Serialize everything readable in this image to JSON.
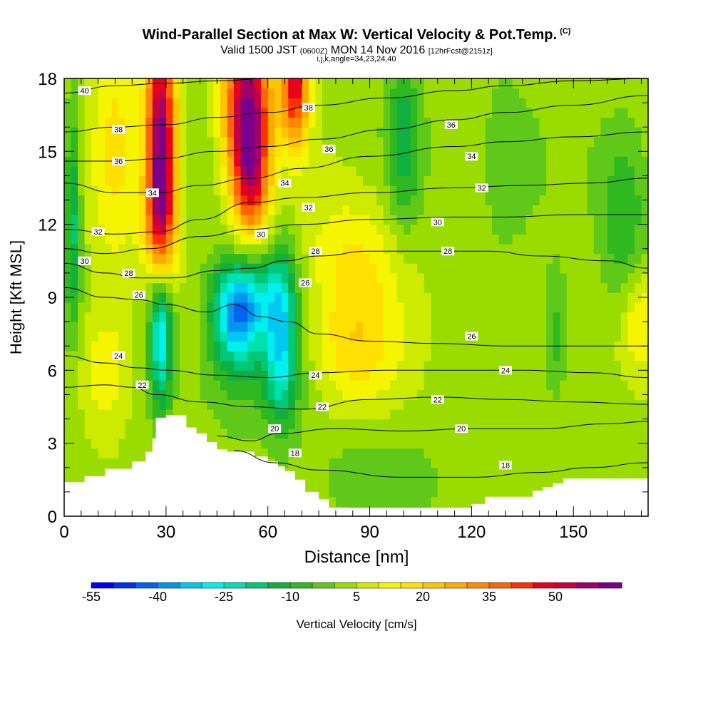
{
  "title": "Wind-Parallel Section at Max W: Vertical Velocity & Pot.Temp.",
  "title_mark": "(C)",
  "subtitle": {
    "valid": "Valid 1500 JST",
    "utc": "(0600Z)",
    "date": "MON 14 Nov 2016",
    "fcst": "[12hrFcst@2151z]"
  },
  "params": "i,j,k,angle=34,23,24,40",
  "chart_data": {
    "type": "heatmap",
    "title": "Wind-Parallel Section at Max W: Vertical Velocity & Pot.Temp.",
    "xlabel": "Distance [nm]",
    "ylabel": "Height [Kft MSL]",
    "xlim": [
      0,
      172
    ],
    "ylim": [
      0,
      18
    ],
    "xticks": [
      0,
      30,
      60,
      90,
      120,
      150
    ],
    "yticks": [
      0,
      3,
      6,
      9,
      12,
      15,
      18
    ],
    "colorbar": {
      "label": "Vertical Velocity [cm/s]",
      "tick_labels": [
        "-55",
        "-40",
        "-25",
        "-10",
        "5",
        "20",
        "35",
        "50"
      ],
      "levels": [
        -55,
        -50,
        -45,
        -40,
        -35,
        -30,
        -25,
        -20,
        -15,
        -10,
        -5,
        0,
        5,
        10,
        15,
        20,
        25,
        30,
        35,
        40,
        45,
        50,
        55,
        60
      ],
      "colors": [
        "#0000f0",
        "#0030f0",
        "#0064f0",
        "#0096f0",
        "#00c8f0",
        "#00f0f0",
        "#00e0b0",
        "#00c878",
        "#10b040",
        "#30b820",
        "#60c818",
        "#9adc00",
        "#cdeb00",
        "#f5f500",
        "#ffe000",
        "#ffc400",
        "#ffa800",
        "#ff8800",
        "#ff6400",
        "#ff3000",
        "#e8001c",
        "#c80040",
        "#a00068",
        "#78008c"
      ]
    },
    "terrain": [
      [
        0,
        1.4
      ],
      [
        6,
        1.4
      ],
      [
        6,
        1.65
      ],
      [
        12,
        1.65
      ],
      [
        12,
        1.95
      ],
      [
        20,
        1.95
      ],
      [
        20,
        2.25
      ],
      [
        24,
        2.25
      ],
      [
        24,
        2.65
      ],
      [
        26,
        2.65
      ],
      [
        26,
        3.2
      ],
      [
        27,
        3.2
      ],
      [
        27,
        4.05
      ],
      [
        30,
        4.05
      ],
      [
        30,
        4.15
      ],
      [
        36,
        4.15
      ],
      [
        36,
        3.65
      ],
      [
        39,
        3.65
      ],
      [
        39,
        3.4
      ],
      [
        42,
        3.4
      ],
      [
        42,
        3.05
      ],
      [
        45,
        3.05
      ],
      [
        45,
        2.75
      ],
      [
        48,
        2.75
      ],
      [
        48,
        2.65
      ],
      [
        56,
        2.65
      ],
      [
        56,
        2.45
      ],
      [
        60,
        2.45
      ],
      [
        60,
        2.25
      ],
      [
        63,
        2.25
      ],
      [
        63,
        2.05
      ],
      [
        65,
        2.05
      ],
      [
        65,
        1.85
      ],
      [
        68,
        1.85
      ],
      [
        68,
        1.5
      ],
      [
        71,
        1.5
      ],
      [
        71,
        1.0
      ],
      [
        75,
        1.0
      ],
      [
        75,
        0.7
      ],
      [
        78,
        0.7
      ],
      [
        78,
        0.35
      ],
      [
        120,
        0.35
      ],
      [
        120,
        0.5
      ],
      [
        124,
        0.5
      ],
      [
        124,
        0.8
      ],
      [
        138,
        0.8
      ],
      [
        138,
        1.05
      ],
      [
        141,
        1.05
      ],
      [
        141,
        1.2
      ],
      [
        144,
        1.2
      ],
      [
        144,
        1.35
      ],
      [
        147,
        1.35
      ],
      [
        147,
        1.55
      ],
      [
        172,
        1.55
      ]
    ],
    "w_features": [
      {
        "x": 28.5,
        "y": 15.5,
        "sx": 3.0,
        "sy": 3.3,
        "w": 60
      },
      {
        "x": 28.5,
        "y": 12.0,
        "sx": 3.4,
        "sy": 1.6,
        "w": 22
      },
      {
        "x": 54.0,
        "y": 16.8,
        "sx": 4.8,
        "sy": 2.3,
        "w": 58
      },
      {
        "x": 55.0,
        "y": 13.6,
        "sx": 3.6,
        "sy": 1.6,
        "w": 32
      },
      {
        "x": 68.0,
        "y": 17.6,
        "sx": 2.8,
        "sy": 1.6,
        "w": 45
      },
      {
        "x": 15.0,
        "y": 15.5,
        "sx": 5.0,
        "sy": 4.5,
        "w": 12
      },
      {
        "x": 12.0,
        "y": 6.0,
        "sx": 5.0,
        "sy": 1.6,
        "w": 12
      },
      {
        "x": 28.5,
        "y": 7.5,
        "sx": 2.4,
        "sy": 2.1,
        "w": -34
      },
      {
        "x": 51.0,
        "y": 8.2,
        "sx": 5.2,
        "sy": 1.4,
        "w": -36
      },
      {
        "x": 64.0,
        "y": 7.3,
        "sx": 3.2,
        "sy": 2.4,
        "w": -28
      },
      {
        "x": 57.0,
        "y": 9.2,
        "sx": 8.5,
        "sy": 1.3,
        "w": -14
      },
      {
        "x": 2.5,
        "y": 12.0,
        "sx": 1.6,
        "sy": 3.2,
        "w": -20
      },
      {
        "x": 100.0,
        "y": 15.5,
        "sx": 3.5,
        "sy": 2.6,
        "w": -15
      },
      {
        "x": 130.0,
        "y": 14.5,
        "sx": 10.0,
        "sy": 3.0,
        "w": -6
      },
      {
        "x": 165.0,
        "y": 12.0,
        "sx": 5.0,
        "sy": 2.6,
        "w": -12
      },
      {
        "x": 145.0,
        "y": 7.5,
        "sx": 2.4,
        "sy": 1.8,
        "w": -10
      },
      {
        "x": 85.0,
        "y": 10.0,
        "sx": 10.0,
        "sy": 2.2,
        "w": 14
      },
      {
        "x": 85.0,
        "y": 6.5,
        "sx": 9.0,
        "sy": 1.6,
        "w": 12
      },
      {
        "x": 170.0,
        "y": 8.0,
        "sx": 4.0,
        "sy": 1.6,
        "w": 14
      },
      {
        "x": 55.0,
        "y": 5.6,
        "sx": 12.0,
        "sy": 1.6,
        "w": -8
      },
      {
        "x": 90.0,
        "y": 1.5,
        "sx": 15.0,
        "sy": 1.3,
        "w": -6
      }
    ],
    "theta_contours": [
      {
        "level": 18,
        "pts": [
          [
            50,
            2.7
          ],
          [
            62,
            2.2
          ],
          [
            75,
            1.9
          ],
          [
            100,
            1.6
          ],
          [
            120,
            1.6
          ],
          [
            140,
            1.8
          ],
          [
            155,
            2.0
          ],
          [
            172,
            2.2
          ]
        ]
      },
      {
        "level": 20,
        "pts": [
          [
            45,
            3.3
          ],
          [
            55,
            3.1
          ],
          [
            63,
            3.4
          ],
          [
            80,
            3.6
          ],
          [
            100,
            3.5
          ],
          [
            120,
            3.6
          ],
          [
            140,
            3.6
          ],
          [
            160,
            3.8
          ],
          [
            172,
            3.9
          ]
        ]
      },
      {
        "level": 22,
        "pts": [
          [
            0,
            5.3
          ],
          [
            12,
            5.4
          ],
          [
            20,
            5.3
          ],
          [
            27,
            5.0
          ],
          [
            40,
            4.7
          ],
          [
            55,
            4.5
          ],
          [
            70,
            4.4
          ],
          [
            90,
            4.8
          ],
          [
            110,
            4.9
          ],
          [
            130,
            4.8
          ],
          [
            150,
            4.7
          ],
          [
            172,
            4.6
          ]
        ]
      },
      {
        "level": 24,
        "pts": [
          [
            0,
            6.6
          ],
          [
            12,
            6.3
          ],
          [
            22,
            6.1
          ],
          [
            30,
            6.0
          ],
          [
            45,
            5.8
          ],
          [
            60,
            5.7
          ],
          [
            75,
            5.9
          ],
          [
            95,
            6.0
          ],
          [
            115,
            6.0
          ],
          [
            135,
            6.0
          ],
          [
            155,
            5.9
          ],
          [
            172,
            5.7
          ]
        ]
      },
      {
        "level": 26,
        "pts": [
          [
            0,
            9.4
          ],
          [
            12,
            9.0
          ],
          [
            22,
            8.9
          ],
          [
            30,
            8.7
          ],
          [
            42,
            8.4
          ],
          [
            50,
            8.7
          ],
          [
            58,
            8.2
          ],
          [
            66,
            8.0
          ],
          [
            75,
            7.5
          ],
          [
            90,
            7.2
          ],
          [
            110,
            7.1
          ],
          [
            130,
            7.0
          ],
          [
            150,
            7.0
          ],
          [
            172,
            7.0
          ]
        ]
      },
      {
        "level": 28,
        "pts": [
          [
            0,
            10.4
          ],
          [
            12,
            10.0
          ],
          [
            22,
            9.8
          ],
          [
            32,
            9.8
          ],
          [
            45,
            10.1
          ],
          [
            55,
            10.2
          ],
          [
            65,
            10.5
          ],
          [
            75,
            10.7
          ],
          [
            90,
            10.9
          ],
          [
            110,
            10.9
          ],
          [
            125,
            10.9
          ],
          [
            140,
            10.7
          ],
          [
            160,
            10.5
          ],
          [
            172,
            10.2
          ]
        ]
      },
      {
        "level": 30,
        "pts": [
          [
            0,
            11.0
          ],
          [
            12,
            10.8
          ],
          [
            25,
            11.0
          ],
          [
            40,
            11.5
          ],
          [
            55,
            11.8
          ],
          [
            70,
            12.0
          ],
          [
            90,
            12.2
          ],
          [
            115,
            12.3
          ],
          [
            130,
            12.3
          ],
          [
            150,
            12.4
          ],
          [
            172,
            12.4
          ]
        ]
      },
      {
        "level": 32,
        "pts": [
          [
            0,
            11.8
          ],
          [
            15,
            11.6
          ],
          [
            28,
            11.7
          ],
          [
            40,
            12.2
          ],
          [
            55,
            12.9
          ],
          [
            70,
            13.1
          ],
          [
            90,
            13.3
          ],
          [
            115,
            13.5
          ],
          [
            135,
            13.6
          ],
          [
            155,
            13.7
          ],
          [
            172,
            13.9
          ]
        ]
      },
      {
        "level": 34,
        "pts": [
          [
            0,
            13.7
          ],
          [
            15,
            13.3
          ],
          [
            28,
            13.3
          ],
          [
            40,
            13.6
          ],
          [
            55,
            13.9
          ],
          [
            70,
            14.3
          ],
          [
            90,
            14.8
          ],
          [
            115,
            15.2
          ],
          [
            130,
            15.4
          ],
          [
            150,
            15.6
          ],
          [
            172,
            15.8
          ]
        ]
      },
      {
        "level": 36,
        "pts": [
          [
            0,
            14.6
          ],
          [
            15,
            14.6
          ],
          [
            28,
            14.7
          ],
          [
            45,
            15.0
          ],
          [
            60,
            15.2
          ],
          [
            75,
            15.5
          ],
          [
            95,
            15.9
          ],
          [
            115,
            16.3
          ],
          [
            130,
            16.6
          ],
          [
            150,
            16.9
          ],
          [
            172,
            17.3
          ]
        ]
      },
      {
        "level": 38,
        "pts": [
          [
            0,
            15.8
          ],
          [
            15,
            16.0
          ],
          [
            30,
            16.1
          ],
          [
            45,
            16.4
          ],
          [
            60,
            16.6
          ],
          [
            75,
            16.9
          ],
          [
            95,
            17.2
          ],
          [
            115,
            17.5
          ],
          [
            130,
            17.7
          ],
          [
            150,
            17.9
          ],
          [
            172,
            18.0
          ]
        ]
      },
      {
        "level": 40,
        "pts": [
          [
            0,
            17.4
          ],
          [
            15,
            17.7
          ],
          [
            30,
            17.8
          ],
          [
            45,
            17.9
          ],
          [
            60,
            18.0
          ]
        ]
      }
    ],
    "theta_labels": [
      {
        "text": "40",
        "x": 6,
        "y": 17.5
      },
      {
        "text": "38",
        "x": 16,
        "y": 15.9
      },
      {
        "text": "36",
        "x": 16,
        "y": 14.6
      },
      {
        "text": "34",
        "x": 26,
        "y": 13.3
      },
      {
        "text": "32",
        "x": 10,
        "y": 11.7
      },
      {
        "text": "30",
        "x": 6,
        "y": 10.5
      },
      {
        "text": "28",
        "x": 19,
        "y": 10.0
      },
      {
        "text": "26",
        "x": 22,
        "y": 9.1
      },
      {
        "text": "24",
        "x": 16,
        "y": 6.6
      },
      {
        "text": "22",
        "x": 23,
        "y": 5.4
      },
      {
        "text": "38",
        "x": 72,
        "y": 16.8
      },
      {
        "text": "36",
        "x": 78,
        "y": 15.1
      },
      {
        "text": "34",
        "x": 65,
        "y": 13.7
      },
      {
        "text": "32",
        "x": 72,
        "y": 12.7
      },
      {
        "text": "30",
        "x": 58,
        "y": 11.6
      },
      {
        "text": "28",
        "x": 74,
        "y": 10.9
      },
      {
        "text": "26",
        "x": 71,
        "y": 9.6
      },
      {
        "text": "24",
        "x": 74,
        "y": 5.8
      },
      {
        "text": "22",
        "x": 76,
        "y": 4.5
      },
      {
        "text": "20",
        "x": 62,
        "y": 3.6
      },
      {
        "text": "18",
        "x": 68,
        "y": 2.6
      },
      {
        "text": "36",
        "x": 114,
        "y": 16.1
      },
      {
        "text": "34",
        "x": 120,
        "y": 14.8
      },
      {
        "text": "32",
        "x": 123,
        "y": 13.5
      },
      {
        "text": "30",
        "x": 110,
        "y": 12.1
      },
      {
        "text": "28",
        "x": 113,
        "y": 10.9
      },
      {
        "text": "26",
        "x": 120,
        "y": 7.4
      },
      {
        "text": "24",
        "x": 130,
        "y": 6.0
      },
      {
        "text": "22",
        "x": 110,
        "y": 4.8
      },
      {
        "text": "20",
        "x": 117,
        "y": 3.6
      },
      {
        "text": "18",
        "x": 130,
        "y": 2.1
      }
    ]
  }
}
